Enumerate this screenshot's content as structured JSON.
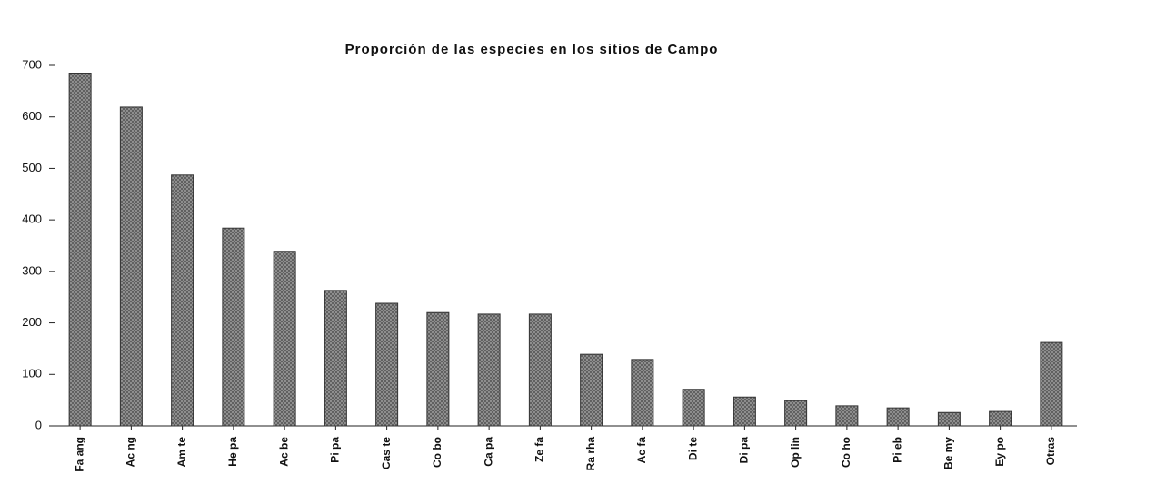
{
  "chart_data": {
    "type": "bar",
    "title": "Proporción de las especies en los sitios de Campo",
    "categories": [
      "Fa ang",
      "Ac ng",
      "Am te",
      "He pa",
      "Ac be",
      "Pi pa",
      "Cas te",
      "Co bo",
      "Ca pa",
      "Ze fa",
      "Ra rha",
      "Ac fa",
      "Di te",
      "Di pa",
      "Op lin",
      "Co ho",
      "Pi eb",
      "Be my",
      "Ey po",
      "Otras"
    ],
    "values": [
      685,
      619,
      487,
      384,
      339,
      263,
      238,
      220,
      217,
      217,
      139,
      129,
      71,
      56,
      49,
      39,
      35,
      26,
      28,
      162
    ],
    "color": "#8c8c8c",
    "ylim": [
      0,
      700
    ],
    "yticks": [
      0,
      100,
      200,
      300,
      400,
      500,
      600,
      700
    ],
    "grid": false
  }
}
